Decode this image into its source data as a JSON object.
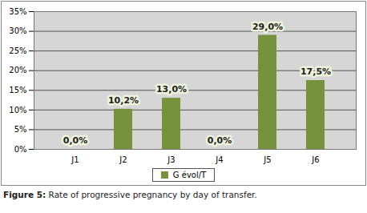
{
  "chart_data": {
    "type": "bar",
    "caption": "Figure 5: Rate of progressive pregnancy by day of transfer.",
    "categories": [
      "J1",
      "J2",
      "J3",
      "J4",
      "J5",
      "J6"
    ],
    "series": [
      {
        "name": "G évol/T",
        "color": "#77923c",
        "values": [
          0,
          10.2,
          13,
          0,
          29,
          17.5
        ],
        "value_labels": [
          "0,0%",
          "10,2%",
          "13,0%",
          "0,0%",
          "29,0%",
          "17,5%"
        ]
      }
    ],
    "ylim": [
      0,
      35
    ],
    "yticks": [
      {
        "value": 0,
        "label": "0%"
      },
      {
        "value": 5,
        "label": "5%"
      },
      {
        "value": 10,
        "label": "10%"
      },
      {
        "value": 15,
        "label": "15%"
      },
      {
        "value": 20,
        "label": "20%"
      },
      {
        "value": 25,
        "label": "25%"
      },
      {
        "value": 30,
        "label": "30%"
      },
      {
        "value": 35,
        "label": "35%"
      }
    ],
    "grid": true,
    "data_labels": true,
    "legend": "bottom"
  }
}
